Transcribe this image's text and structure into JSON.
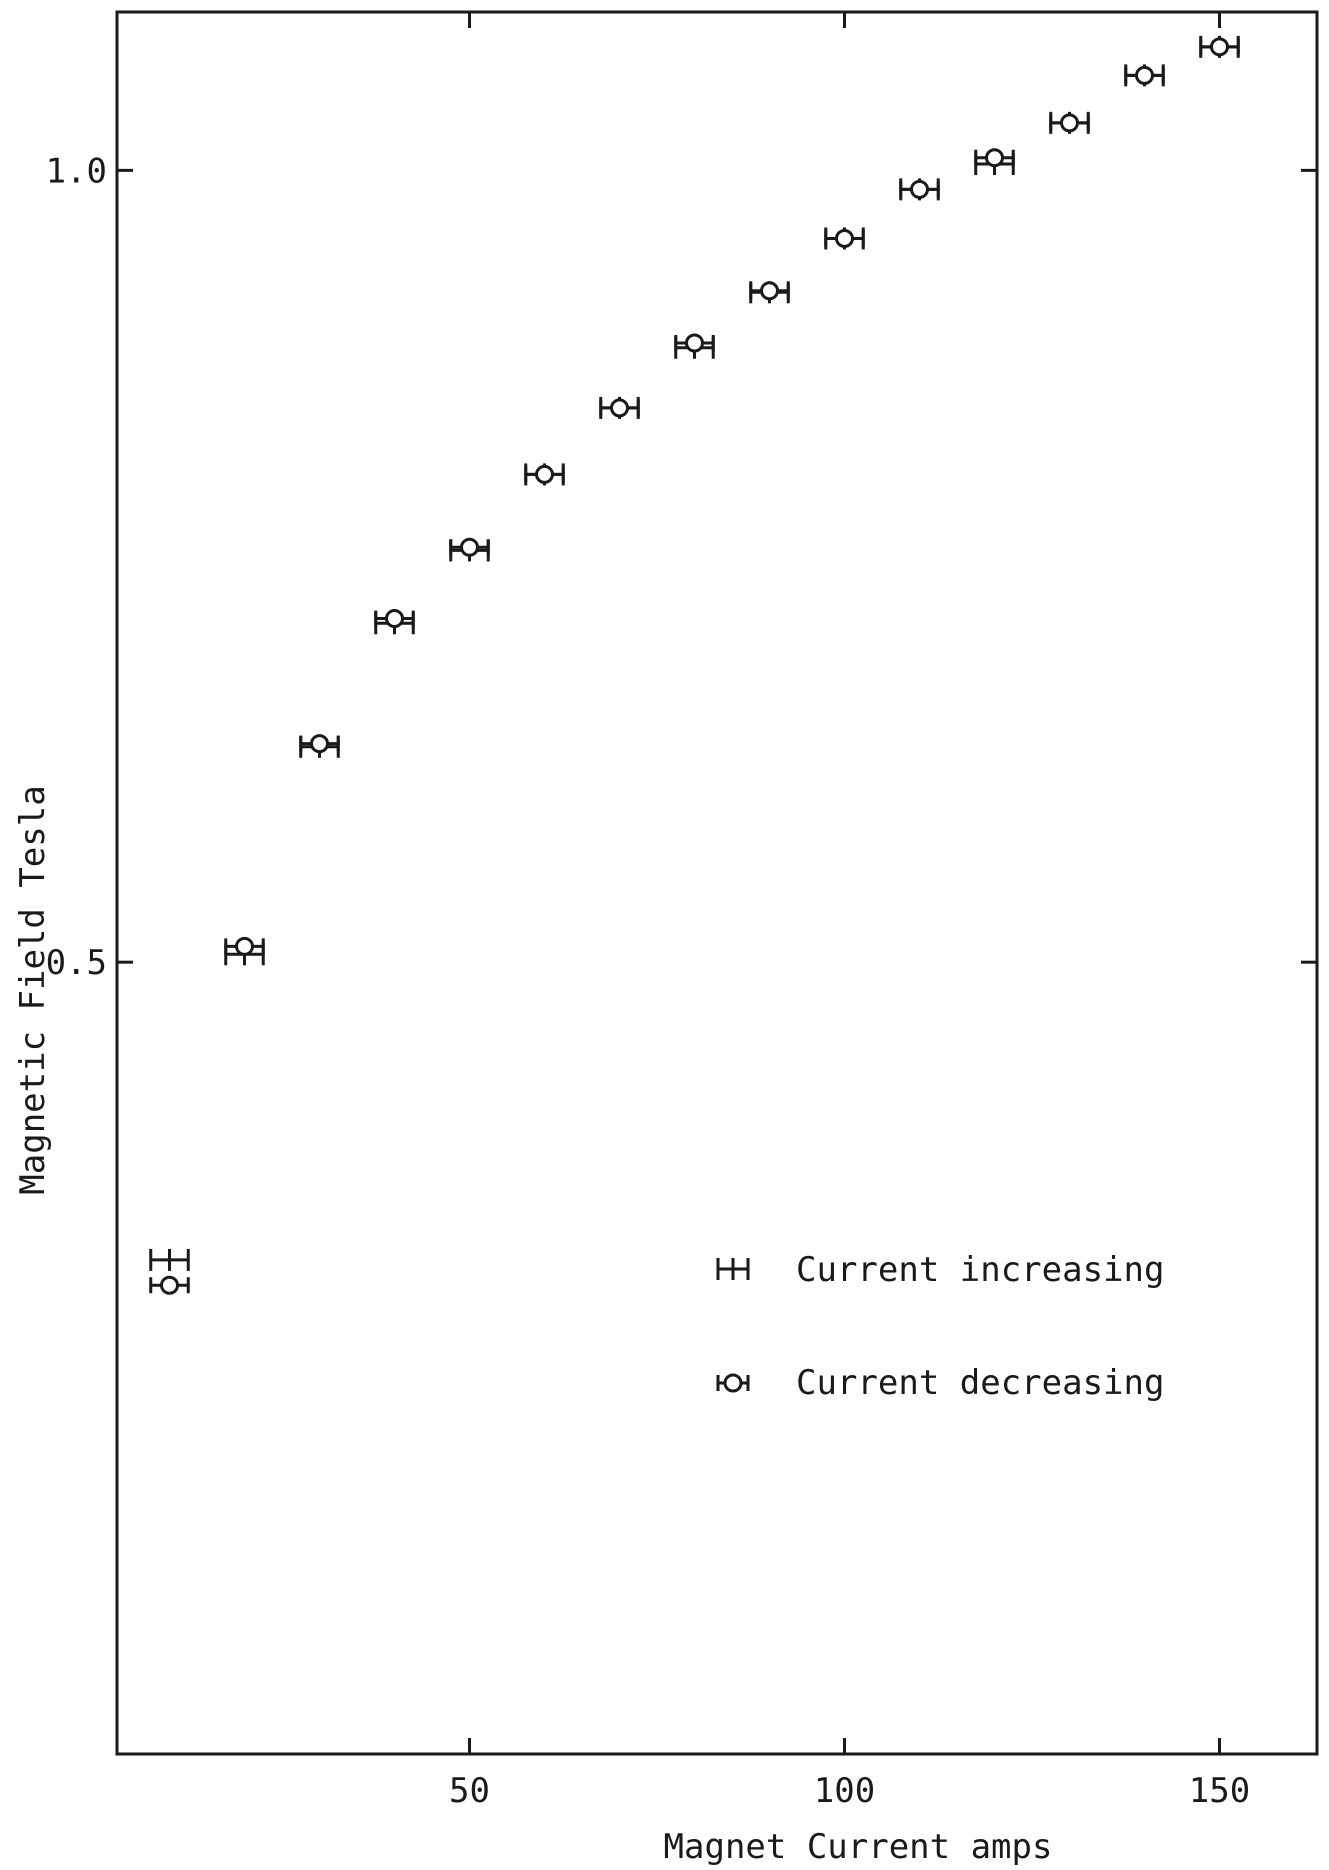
{
  "chart_data": {
    "type": "scatter",
    "xlabel": "Magnet Current amps",
    "ylabel": "Magnetic Field Tesla",
    "x_ticks": [
      50,
      100,
      150
    ],
    "y_ticks": [
      0.5,
      1.0
    ],
    "x_tick_labels": [
      "50",
      "100",
      "150"
    ],
    "y_tick_labels": [
      "0.5",
      "1.0"
    ],
    "xlim": [
      3,
      163
    ],
    "ylim": [
      0.0,
      1.1
    ],
    "grid": false,
    "legend_position": "lower-right",
    "series": [
      {
        "name": "Current increasing",
        "marker": "bar",
        "x": [
          10,
          20,
          30,
          40,
          50,
          60,
          70,
          80,
          90,
          100,
          110,
          120,
          130,
          140,
          150
        ],
        "y": [
          0.312,
          0.505,
          0.636,
          0.714,
          0.76,
          0.808,
          0.85,
          0.888,
          0.923,
          0.957,
          0.988,
          1.004,
          1.03,
          1.06,
          1.078
        ]
      },
      {
        "name": "Current decreasing",
        "marker": "circle",
        "x": [
          10,
          20,
          30,
          40,
          50,
          60,
          70,
          80,
          90,
          100,
          110,
          120,
          130,
          140,
          150
        ],
        "y": [
          0.296,
          0.51,
          0.638,
          0.717,
          0.762,
          0.808,
          0.85,
          0.891,
          0.924,
          0.957,
          0.988,
          1.008,
          1.03,
          1.06,
          1.078
        ]
      }
    ],
    "x_error": 2.5
  }
}
